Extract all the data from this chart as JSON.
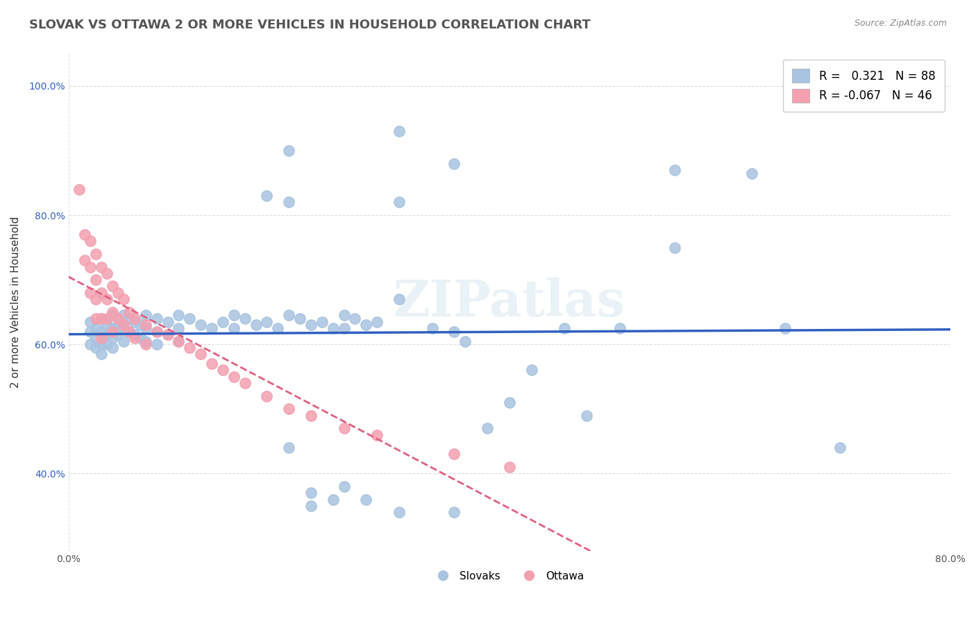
{
  "title": "SLOVAK VS OTTAWA 2 OR MORE VEHICLES IN HOUSEHOLD CORRELATION CHART",
  "source": "Source: ZipAtlas.com",
  "xlabel_ticks": [
    "0.0%",
    "80.0%"
  ],
  "ylabel": "2 or more Vehicles in Household",
  "ytick_labels": [
    "40.0%",
    "60.0%",
    "80.0%",
    "100.0%"
  ],
  "ytick_values": [
    0.4,
    0.6,
    0.8,
    1.0
  ],
  "xlim": [
    0.0,
    0.8
  ],
  "ylim": [
    0.28,
    1.05
  ],
  "legend_entry1": "R =   0.321   N = 88",
  "legend_entry2": "R = -0.067   N = 46",
  "legend_label1": "Slovaks",
  "legend_label2": "Ottawa",
  "R1": 0.321,
  "N1": 88,
  "R2": -0.067,
  "N2": 46,
  "blue_color": "#a8c4e0",
  "pink_color": "#f4a0b0",
  "blue_line_color": "#3060c0",
  "pink_line_color": "#e06080",
  "watermark": "ZIPatlas",
  "title_fontsize": 13,
  "label_fontsize": 11,
  "tick_fontsize": 10,
  "blue_scatter": [
    [
      0.02,
      0.635
    ],
    [
      0.02,
      0.62
    ],
    [
      0.02,
      0.6
    ],
    [
      0.025,
      0.625
    ],
    [
      0.025,
      0.61
    ],
    [
      0.025,
      0.595
    ],
    [
      0.03,
      0.64
    ],
    [
      0.03,
      0.62
    ],
    [
      0.03,
      0.6
    ],
    [
      0.03,
      0.585
    ],
    [
      0.035,
      0.63
    ],
    [
      0.035,
      0.615
    ],
    [
      0.035,
      0.6
    ],
    [
      0.04,
      0.645
    ],
    [
      0.04,
      0.625
    ],
    [
      0.04,
      0.61
    ],
    [
      0.04,
      0.595
    ],
    [
      0.045,
      0.63
    ],
    [
      0.045,
      0.615
    ],
    [
      0.05,
      0.645
    ],
    [
      0.05,
      0.625
    ],
    [
      0.05,
      0.605
    ],
    [
      0.055,
      0.64
    ],
    [
      0.055,
      0.62
    ],
    [
      0.06,
      0.635
    ],
    [
      0.06,
      0.615
    ],
    [
      0.065,
      0.63
    ],
    [
      0.065,
      0.61
    ],
    [
      0.07,
      0.645
    ],
    [
      0.07,
      0.625
    ],
    [
      0.07,
      0.605
    ],
    [
      0.08,
      0.64
    ],
    [
      0.08,
      0.62
    ],
    [
      0.08,
      0.6
    ],
    [
      0.09,
      0.635
    ],
    [
      0.09,
      0.615
    ],
    [
      0.1,
      0.645
    ],
    [
      0.1,
      0.625
    ],
    [
      0.1,
      0.605
    ],
    [
      0.11,
      0.64
    ],
    [
      0.12,
      0.63
    ],
    [
      0.13,
      0.625
    ],
    [
      0.14,
      0.635
    ],
    [
      0.15,
      0.645
    ],
    [
      0.15,
      0.625
    ],
    [
      0.16,
      0.64
    ],
    [
      0.17,
      0.63
    ],
    [
      0.18,
      0.635
    ],
    [
      0.19,
      0.625
    ],
    [
      0.2,
      0.645
    ],
    [
      0.21,
      0.64
    ],
    [
      0.22,
      0.63
    ],
    [
      0.23,
      0.635
    ],
    [
      0.24,
      0.625
    ],
    [
      0.25,
      0.645
    ],
    [
      0.25,
      0.625
    ],
    [
      0.26,
      0.64
    ],
    [
      0.27,
      0.63
    ],
    [
      0.28,
      0.635
    ],
    [
      0.3,
      0.67
    ],
    [
      0.33,
      0.625
    ],
    [
      0.35,
      0.62
    ],
    [
      0.36,
      0.605
    ],
    [
      0.38,
      0.47
    ],
    [
      0.4,
      0.51
    ],
    [
      0.42,
      0.56
    ],
    [
      0.45,
      0.625
    ],
    [
      0.47,
      0.49
    ],
    [
      0.5,
      0.625
    ],
    [
      0.55,
      0.75
    ],
    [
      0.62,
      0.865
    ],
    [
      0.65,
      0.625
    ],
    [
      0.7,
      0.44
    ],
    [
      0.22,
      0.35
    ],
    [
      0.24,
      0.36
    ],
    [
      0.3,
      0.82
    ],
    [
      0.35,
      0.88
    ],
    [
      0.2,
      0.44
    ],
    [
      0.22,
      0.37
    ],
    [
      0.25,
      0.38
    ],
    [
      0.27,
      0.36
    ],
    [
      0.3,
      0.34
    ],
    [
      0.35,
      0.34
    ],
    [
      0.2,
      0.82
    ],
    [
      0.18,
      0.83
    ],
    [
      0.55,
      0.87
    ],
    [
      0.2,
      0.9
    ],
    [
      0.3,
      0.93
    ]
  ],
  "pink_scatter": [
    [
      0.01,
      0.84
    ],
    [
      0.015,
      0.77
    ],
    [
      0.015,
      0.73
    ],
    [
      0.02,
      0.76
    ],
    [
      0.02,
      0.72
    ],
    [
      0.02,
      0.68
    ],
    [
      0.025,
      0.74
    ],
    [
      0.025,
      0.7
    ],
    [
      0.025,
      0.67
    ],
    [
      0.025,
      0.64
    ],
    [
      0.03,
      0.72
    ],
    [
      0.03,
      0.68
    ],
    [
      0.03,
      0.64
    ],
    [
      0.03,
      0.61
    ],
    [
      0.035,
      0.71
    ],
    [
      0.035,
      0.67
    ],
    [
      0.035,
      0.64
    ],
    [
      0.04,
      0.69
    ],
    [
      0.04,
      0.65
    ],
    [
      0.04,
      0.62
    ],
    [
      0.045,
      0.68
    ],
    [
      0.045,
      0.64
    ],
    [
      0.05,
      0.67
    ],
    [
      0.05,
      0.63
    ],
    [
      0.055,
      0.65
    ],
    [
      0.055,
      0.62
    ],
    [
      0.06,
      0.64
    ],
    [
      0.06,
      0.61
    ],
    [
      0.07,
      0.63
    ],
    [
      0.07,
      0.6
    ],
    [
      0.08,
      0.62
    ],
    [
      0.09,
      0.615
    ],
    [
      0.1,
      0.605
    ],
    [
      0.11,
      0.595
    ],
    [
      0.12,
      0.585
    ],
    [
      0.13,
      0.57
    ],
    [
      0.14,
      0.56
    ],
    [
      0.15,
      0.55
    ],
    [
      0.16,
      0.54
    ],
    [
      0.18,
      0.52
    ],
    [
      0.2,
      0.5
    ],
    [
      0.22,
      0.49
    ],
    [
      0.25,
      0.47
    ],
    [
      0.28,
      0.46
    ],
    [
      0.35,
      0.43
    ],
    [
      0.4,
      0.41
    ]
  ]
}
